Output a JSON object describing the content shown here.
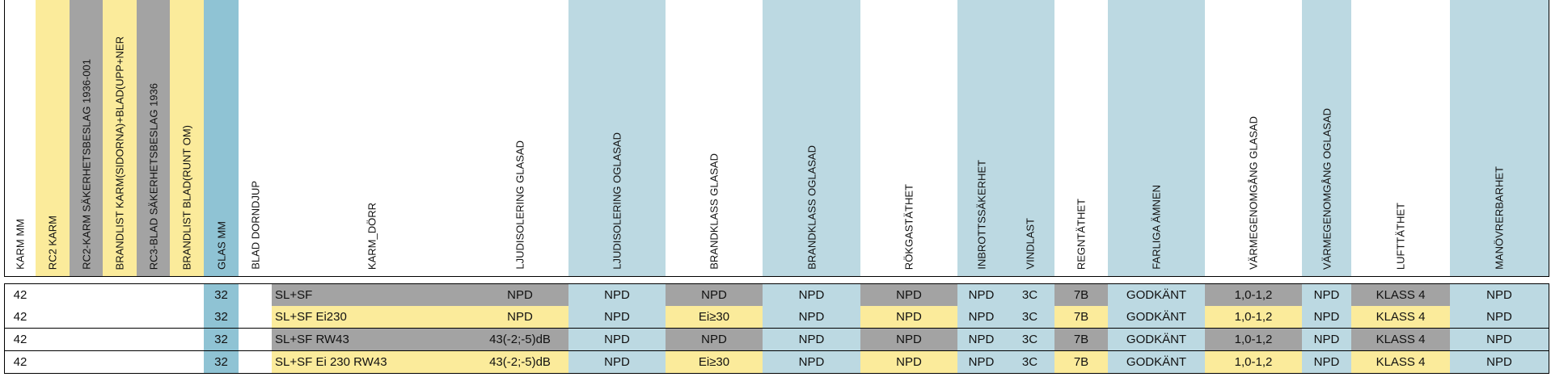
{
  "table": {
    "headers": [
      "KARM MM",
      "RC2 KARM",
      "RC2-KARM SÄKERHETSBESLAG 1936-001",
      "BRANDLIST KARM(SIDORNA)+BLAD(UPP+NER",
      "RC3-BLAD SÄKERHETSBESLAG 1936",
      "BRANDLIST BLAD(RUNT OM)",
      "GLAS MM",
      "BLAD DORNDJUP",
      "KARM_DÖRR",
      "LJUDISOLERING GLASAD",
      "LJUDISOLERING OGLASAD",
      "BRANDKLASS GLASAD",
      "BRANDKLASS OGLASAD",
      "RÖKGASTÄTHET",
      "INBROTTSSÄKERHET",
      "VINDLAST",
      "REGNTÄTHET",
      "FARLIGA ÄMNEN",
      "VÄRMEGENOMGÅNG GLASAD",
      "VÄRMEGENOMGÅNG OGLASAD",
      "LUFTTÄTHET",
      "MANÖVRERBARHET"
    ],
    "rows": [
      [
        "42",
        null,
        null,
        null,
        null,
        null,
        "32",
        null,
        "SL+SF",
        "NPD",
        "NPD",
        "NPD",
        "NPD",
        "NPD",
        "NPD",
        "3C",
        "7B",
        "GODKÄNT",
        "1,0-1,2",
        "NPD",
        "KLASS 4",
        "NPD"
      ],
      [
        "42",
        null,
        null,
        null,
        null,
        null,
        "32",
        null,
        "SL+SF Ei230",
        "NPD",
        "NPD",
        "Ei≥30",
        "NPD",
        "NPD",
        "NPD",
        "3C",
        "7B",
        "GODKÄNT",
        "1,0-1,2",
        "NPD",
        "KLASS 4",
        "NPD"
      ],
      [
        "42",
        null,
        null,
        null,
        null,
        null,
        "32",
        null,
        "SL+SF RW43",
        "43(-2;-5)dB",
        "NPD",
        "NPD",
        "NPD",
        "NPD",
        "NPD",
        "3C",
        "7B",
        "GODKÄNT",
        "1,0-1,2",
        "NPD",
        "KLASS 4",
        "NPD"
      ],
      [
        "42",
        null,
        null,
        null,
        null,
        null,
        "32",
        null,
        "SL+SF Ei 230 RW43",
        "43(-2;-5)dB",
        "NPD",
        "Ei≥30",
        "NPD",
        "NPD",
        "NPD",
        "3C",
        "7B",
        "GODKÄNT",
        "1,0-1,2",
        "NPD",
        "KLASS 4",
        "NPD"
      ]
    ]
  }
}
